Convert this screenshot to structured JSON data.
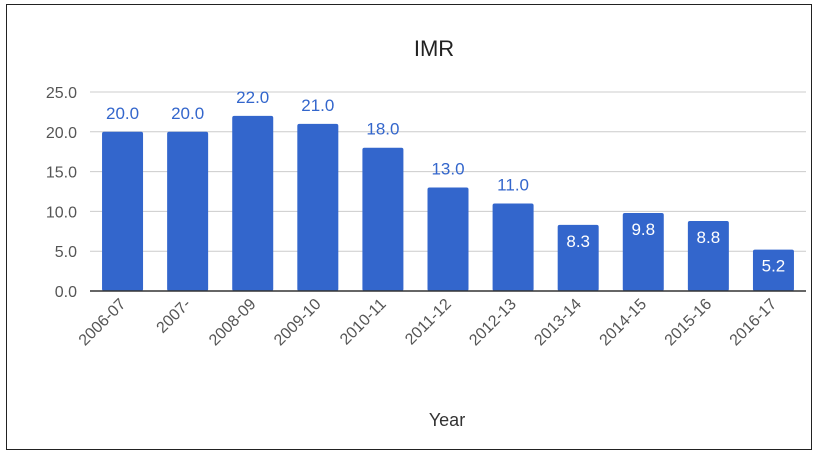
{
  "chart_data": {
    "type": "bar",
    "title": "IMR",
    "xlabel": "Year",
    "ylabel": "",
    "categories": [
      "2006-07",
      "2007-",
      "2008-09",
      "2009-10",
      "2010-11",
      "2011-12",
      "2012-13",
      "2013-14",
      "2014-15",
      "2015-16",
      "2016-17"
    ],
    "values": [
      20.0,
      20.0,
      22.0,
      21.0,
      18.0,
      13.0,
      11.0,
      8.3,
      9.8,
      8.8,
      5.2
    ],
    "data_labels": [
      "20.0",
      "20.0",
      "22.0",
      "21.0",
      "18.0",
      "13.0",
      "11.0",
      "8.3",
      "9.8",
      "8.8",
      "5.2"
    ],
    "yticks": [
      "0.0",
      "5.0",
      "10.0",
      "15.0",
      "20.0",
      "25.0"
    ],
    "ylim": [
      0,
      25
    ],
    "grid": true,
    "legend": "none",
    "colors": {
      "bar": "#3366cc",
      "label_outside": "#3366cc",
      "label_inside": "#ffffff",
      "grid": "#cccccc",
      "axis": "#333333"
    }
  }
}
